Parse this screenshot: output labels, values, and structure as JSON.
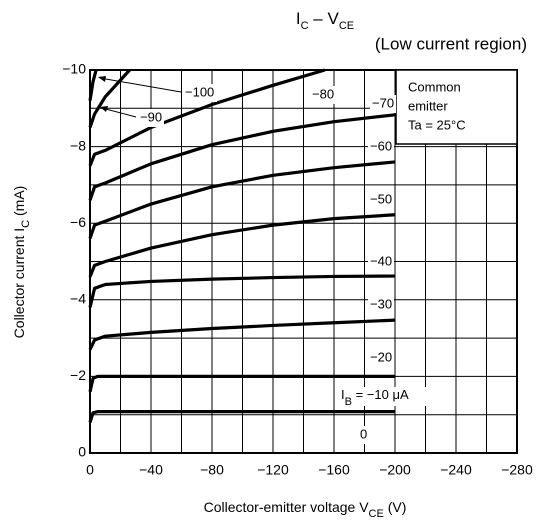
{
  "chart_data": {
    "type": "line",
    "title_parts": [
      {
        "text": "I"
      },
      {
        "text": "C",
        "sub": true
      },
      {
        "text": " – V"
      },
      {
        "text": "CE",
        "sub": true
      }
    ],
    "subtitle": "(Low current region)",
    "ylabel_parts": [
      {
        "text": "Collector current   I"
      },
      {
        "text": "C",
        "sub": true
      },
      {
        "text": "   (mA)"
      }
    ],
    "xlabel_parts": [
      {
        "text": "Collector-emitter voltage   V"
      },
      {
        "text": "CE",
        "sub": true
      },
      {
        "text": "   (V)"
      }
    ],
    "note": [
      "Common",
      "emitter",
      "Ta = 25°C"
    ],
    "ib_label": [
      {
        "text": "I"
      },
      {
        "text": "B",
        "sub": true
      },
      {
        "text": " = "
      }
    ],
    "ib_unit": " μA",
    "annotation_zero": "0",
    "xlim": [
      0,
      -280
    ],
    "ylim": [
      0,
      -10
    ],
    "xticks": [
      0,
      {
        "value": -40,
        "label": "−40"
      },
      {
        "value": -80,
        "label": "−80"
      },
      {
        "value": -120,
        "label": "−120"
      },
      {
        "value": -160,
        "label": "−160"
      },
      {
        "value": -200,
        "label": "−200"
      },
      {
        "value": -240,
        "label": "−240"
      },
      {
        "value": -280,
        "label": "−280"
      }
    ],
    "yticks": [
      0,
      {
        "value": -2,
        "label": "−2"
      },
      {
        "value": -4,
        "label": "−4"
      },
      {
        "value": -6,
        "label": "−6"
      },
      {
        "value": -8,
        "label": "−8"
      },
      {
        "value": -10,
        "label": "−10"
      }
    ],
    "xminor": [
      -20,
      -60,
      -100,
      -140,
      -180,
      -220,
      -260
    ],
    "yminor": [
      -1,
      -3,
      -5,
      -7,
      -9
    ],
    "grid": true,
    "series": [
      {
        "name": "−10",
        "color": "#000000",
        "x": [
          0,
          -2,
          -5,
          -200
        ],
        "values": [
          -0.8,
          -1.05,
          -1.08,
          -1.08
        ]
      },
      {
        "name": "−20",
        "color": "#000000",
        "x": [
          0,
          -2,
          -5,
          -200
        ],
        "values": [
          -1.6,
          -1.95,
          -2.0,
          -2.0
        ]
      },
      {
        "name": "−30",
        "color": "#000000",
        "x": [
          0,
          -3,
          -10,
          -40,
          -80,
          -120,
          -160,
          -200
        ],
        "values": [
          -2.7,
          -2.95,
          -3.05,
          -3.15,
          -3.25,
          -3.33,
          -3.4,
          -3.47
        ]
      },
      {
        "name": "−40",
        "color": "#000000",
        "x": [
          0,
          -3,
          -10,
          -40,
          -80,
          -120,
          -160,
          -200
        ],
        "values": [
          -3.8,
          -4.3,
          -4.4,
          -4.48,
          -4.54,
          -4.58,
          -4.61,
          -4.62
        ]
      },
      {
        "name": "−50",
        "color": "#000000",
        "x": [
          0,
          -3,
          -10,
          -40,
          -80,
          -120,
          -160,
          -200
        ],
        "values": [
          -4.6,
          -4.9,
          -5.0,
          -5.35,
          -5.7,
          -5.95,
          -6.12,
          -6.22
        ]
      },
      {
        "name": "−60",
        "color": "#000000",
        "x": [
          0,
          -3,
          -10,
          -40,
          -80,
          -120,
          -160,
          -200
        ],
        "values": [
          -5.6,
          -5.95,
          -6.05,
          -6.5,
          -6.95,
          -7.25,
          -7.45,
          -7.6
        ]
      },
      {
        "name": "−70",
        "color": "#000000",
        "x": [
          0,
          -3,
          -10,
          -40,
          -80,
          -120,
          -160,
          -200
        ],
        "values": [
          -6.6,
          -6.95,
          -7.05,
          -7.55,
          -8.05,
          -8.4,
          -8.65,
          -8.83
        ]
      },
      {
        "name": "−80",
        "color": "#000000",
        "x": [
          0,
          -3,
          -10,
          -40,
          -80,
          -120,
          -154
        ],
        "values": [
          -7.5,
          -7.8,
          -7.9,
          -8.5,
          -9.1,
          -9.6,
          -10
        ]
      },
      {
        "name": "−90",
        "color": "#000000",
        "x": [
          0,
          -3,
          -10,
          -26
        ],
        "values": [
          -8.5,
          -8.85,
          -9.3,
          -10
        ]
      },
      {
        "name": "−100",
        "color": "#000000",
        "x": [
          0,
          -2,
          -4
        ],
        "values": [
          -9.2,
          -9.7,
          -10
        ]
      }
    ]
  }
}
